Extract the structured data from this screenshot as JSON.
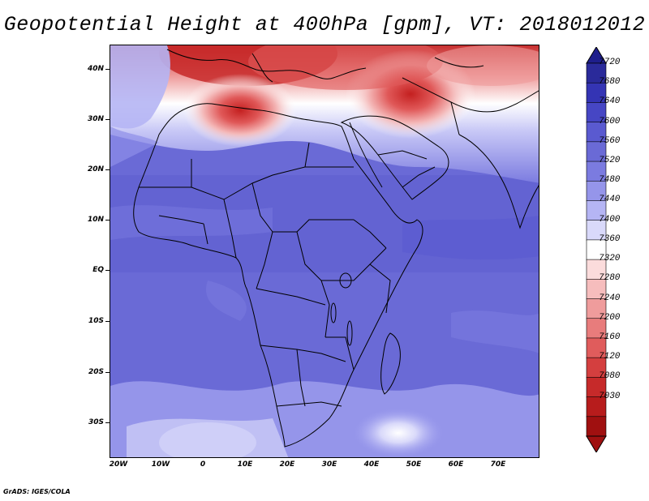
{
  "title": "Geopotential Height at 400hPa [gpm], VT: 2018012012",
  "credit": "GrADS: IGES/COLA",
  "map": {
    "variable": "Geopotential Height",
    "level": "400hPa",
    "units": "gpm",
    "valid_time": "2018012012",
    "region": "Africa",
    "lat_labels": [
      "40N",
      "30N",
      "20N",
      "10N",
      "EQ",
      "10S",
      "20S",
      "30S"
    ],
    "lon_labels": [
      "20W",
      "10W",
      "0",
      "10E",
      "20E",
      "30E",
      "40E",
      "50E",
      "60E",
      "70E"
    ]
  },
  "colorbar": {
    "labels": [
      "7720",
      "7680",
      "7640",
      "7600",
      "7560",
      "7520",
      "7480",
      "7440",
      "7400",
      "7360",
      "7320",
      "7280",
      "7240",
      "7200",
      "7160",
      "7120",
      "7080",
      "7030"
    ],
    "colors": [
      "#2a2a9a",
      "#3434b4",
      "#4646c4",
      "#5a5ad0",
      "#6a6ad6",
      "#7b7be0",
      "#9595ea",
      "#b5b5f4",
      "#d9d9fa",
      "#ffffff",
      "#fbdcdc",
      "#f6bdbd",
      "#ef9c9c",
      "#e87c7c",
      "#e05c5c",
      "#d43f3f",
      "#c62a2a",
      "#b71c1c",
      "#a01010"
    ],
    "top_color": "#1e1e8c",
    "bottom_color": "#a01010"
  }
}
